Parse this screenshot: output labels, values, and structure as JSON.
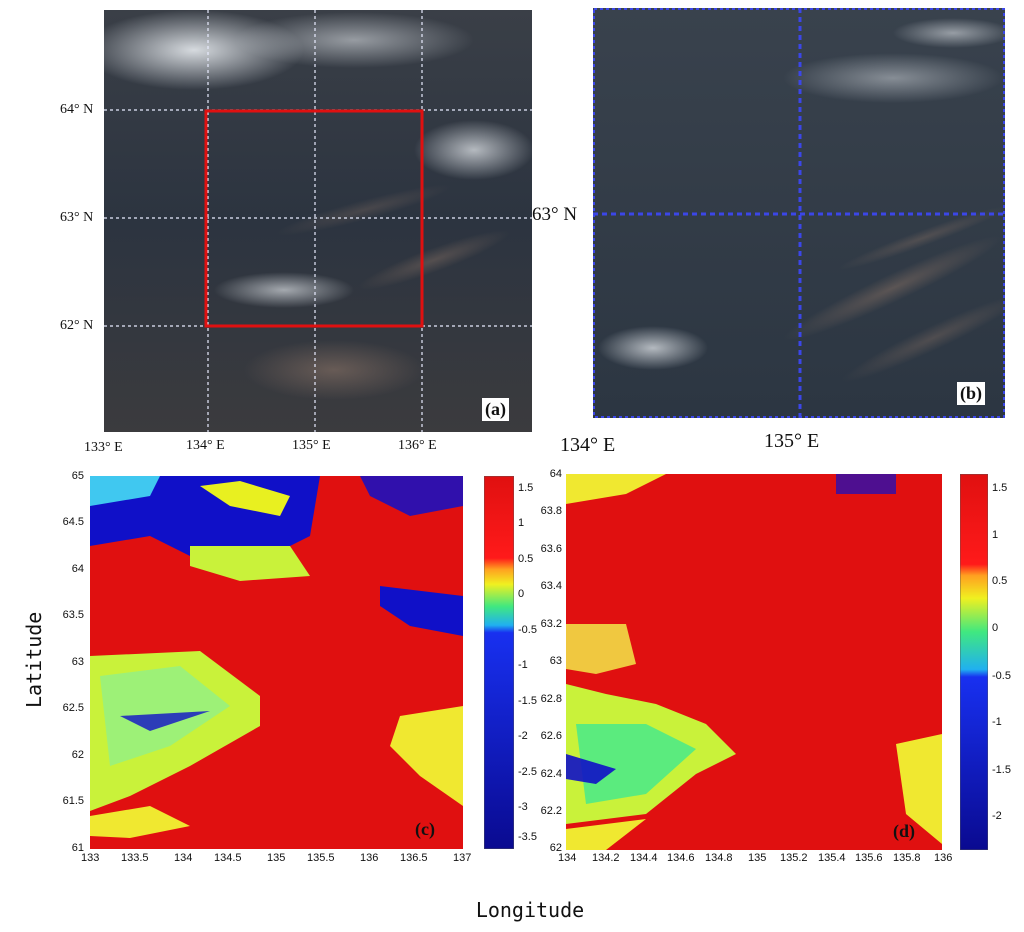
{
  "panels": {
    "a": {
      "tag": "(a)",
      "lat_labels": [
        "64° N",
        "63° N",
        "62° N"
      ],
      "lon_labels": [
        "133° E",
        "134° E",
        "135° E",
        "136° E"
      ]
    },
    "b": {
      "tag": "(b)",
      "lat_labels": [
        "63° N"
      ],
      "lon_labels": [
        "134° E",
        "135° E"
      ]
    },
    "c": {
      "tag": "(c)",
      "y_ticks": [
        "65",
        "64.5",
        "64",
        "63.5",
        "63",
        "62.5",
        "62",
        "61.5",
        "61"
      ],
      "x_ticks": [
        "133",
        "133.5",
        "134",
        "134.5",
        "135",
        "135.5",
        "136",
        "136.5",
        "137"
      ],
      "colorbar_ticks": [
        "1.5",
        "1",
        "0.5",
        "0",
        "-0.5",
        "-1",
        "-1.5",
        "-2",
        "-2.5",
        "-3",
        "-3.5"
      ]
    },
    "d": {
      "tag": "(d)",
      "y_ticks": [
        "64",
        "63.8",
        "63.6",
        "63.4",
        "63.2",
        "63",
        "62.8",
        "62.6",
        "62.4",
        "62.2",
        "62"
      ],
      "x_ticks": [
        "134",
        "134.2",
        "134.4",
        "134.6",
        "134.8",
        "135",
        "135.2",
        "135.4",
        "135.6",
        "135.8",
        "136"
      ],
      "colorbar_ticks": [
        "1.5",
        "1",
        "0.5",
        "0",
        "-0.5",
        "-1",
        "-1.5",
        "-2"
      ]
    }
  },
  "axis_labels": {
    "y": "Latitude",
    "x": "Longitude"
  },
  "colors": {
    "highlight_box": "#e01010",
    "grid_line": "#3b46e8",
    "index_high": "#e01010",
    "index_mid": "#c9f23a",
    "index_low": "#1010c8"
  }
}
